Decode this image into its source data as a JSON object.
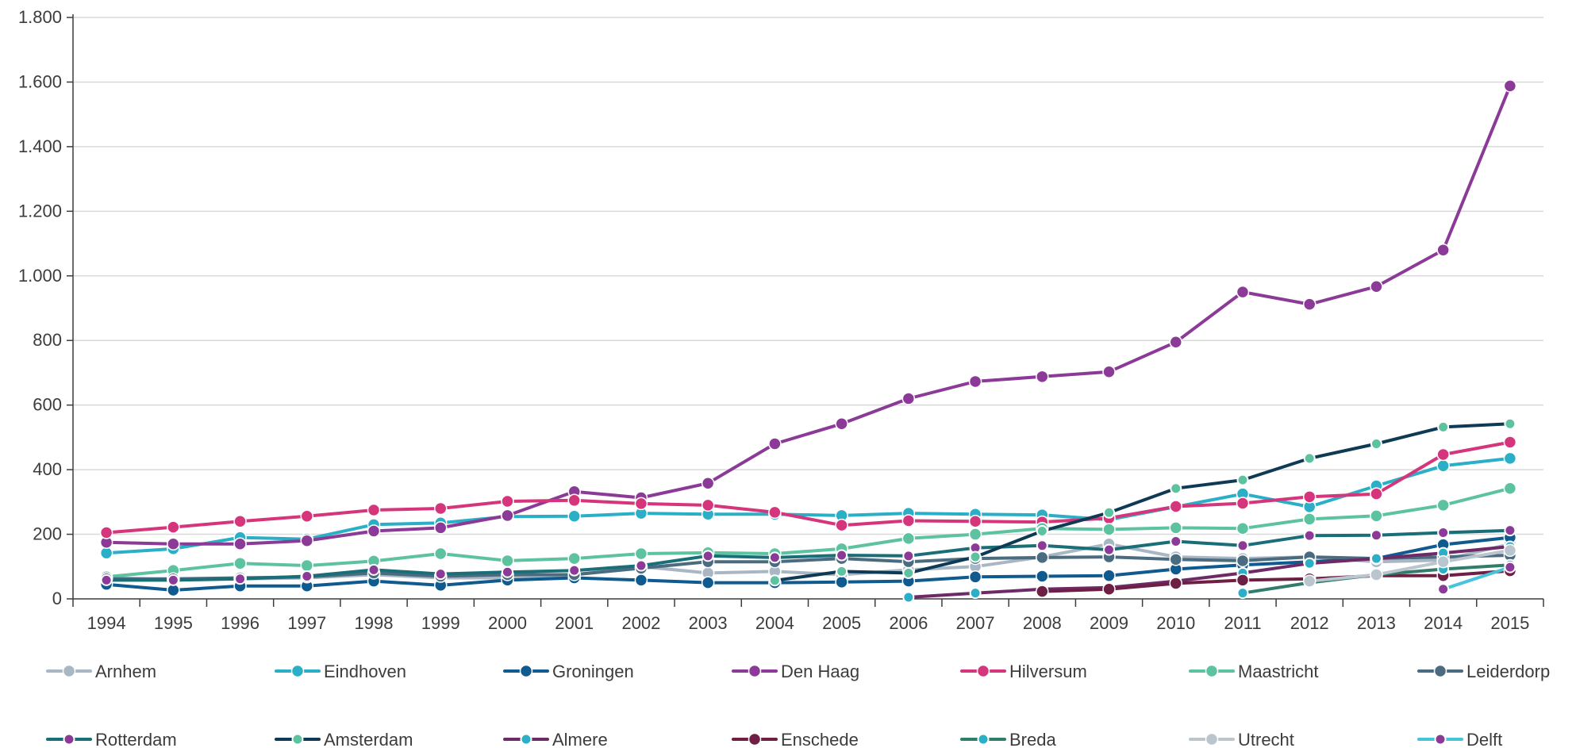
{
  "chart_data": {
    "type": "line",
    "title": "",
    "xlabel": "",
    "ylabel": "",
    "x": [
      "1994",
      "1995",
      "1996",
      "1997",
      "1998",
      "1999",
      "2000",
      "2001",
      "2002",
      "2003",
      "2004",
      "2005",
      "2006",
      "2007",
      "2008",
      "2009",
      "2010",
      "2011",
      "2012",
      "2013",
      "2014",
      "2015"
    ],
    "ylim": [
      0,
      1800
    ],
    "yticks": [
      0,
      200,
      400,
      600,
      800,
      1000,
      1200,
      1400,
      1600,
      1800
    ],
    "ytick_labels": [
      "0",
      "200",
      "400",
      "600",
      "800",
      "1.000",
      "1.200",
      "1.400",
      "1.600",
      "1.800"
    ],
    "grid": "horizontal",
    "legend_position": "bottom",
    "series": [
      {
        "name": "Arnhem",
        "color": "#a9b7c4",
        "marker": "filled",
        "values": [
          65,
          60,
          62,
          65,
          75,
          65,
          65,
          75,
          100,
          80,
          85,
          75,
          90,
          100,
          130,
          170,
          130,
          125,
          130,
          115,
          120,
          170
        ]
      },
      {
        "name": "Eindhoven",
        "color": "#2bafc6",
        "marker": "filled",
        "values": [
          142,
          155,
          190,
          185,
          230,
          235,
          255,
          256,
          265,
          262,
          262,
          258,
          265,
          262,
          260,
          245,
          285,
          325,
          285,
          350,
          412,
          435
        ]
      },
      {
        "name": "Groningen",
        "color": "#0f5a8e",
        "marker": "filled",
        "values": [
          45,
          27,
          40,
          40,
          55,
          42,
          58,
          65,
          58,
          50,
          50,
          52,
          55,
          68,
          70,
          72,
          92,
          105,
          115,
          125,
          168,
          190
        ]
      },
      {
        "name": "Den Haag",
        "color": "#8c3a97",
        "marker": "filled",
        "values": [
          175,
          170,
          170,
          180,
          210,
          220,
          258,
          332,
          313,
          358,
          480,
          542,
          620,
          673,
          688,
          703,
          795,
          950,
          912,
          967,
          1080,
          1588
        ]
      },
      {
        "name": "Hilversum",
        "color": "#d5357a",
        "marker": "filled",
        "values": [
          205,
          222,
          240,
          256,
          275,
          280,
          302,
          305,
          295,
          290,
          268,
          228,
          242,
          240,
          238,
          250,
          286,
          296,
          316,
          325,
          447,
          485
        ]
      },
      {
        "name": "Maastricht",
        "color": "#5cc29f",
        "marker": "filled",
        "values": [
          68,
          88,
          110,
          103,
          117,
          140,
          118,
          125,
          140,
          143,
          140,
          155,
          187,
          200,
          218,
          215,
          220,
          218,
          247,
          257,
          290,
          342
        ]
      },
      {
        "name": "Leiderdorp",
        "color": "#4a6b80",
        "marker": "filled",
        "values": [
          62,
          62,
          65,
          68,
          80,
          70,
          75,
          75,
          95,
          115,
          115,
          125,
          115,
          125,
          128,
          130,
          122,
          118,
          130,
          125,
          130,
          135
        ]
      },
      {
        "name": "Rotterdam",
        "color": "#1a6e77",
        "marker": "dot",
        "markerColor": "#8c3a97",
        "values": [
          58,
          58,
          62,
          70,
          90,
          77,
          83,
          88,
          103,
          133,
          128,
          135,
          133,
          158,
          165,
          152,
          178,
          165,
          196,
          197,
          205,
          212
        ]
      },
      {
        "name": "Amsterdam",
        "color": "#0f3a55",
        "marker": "dot",
        "markerColor": "#5cc29f",
        "values": [
          null,
          null,
          null,
          null,
          null,
          null,
          null,
          null,
          null,
          null,
          57,
          85,
          80,
          130,
          210,
          267,
          342,
          368,
          435,
          480,
          532,
          542
        ]
      },
      {
        "name": "Almere",
        "color": "#6e2a66",
        "marker": "dot",
        "markerColor": "#2bafc6",
        "values": [
          null,
          null,
          null,
          null,
          null,
          null,
          null,
          null,
          null,
          null,
          null,
          null,
          5,
          18,
          30,
          35,
          55,
          80,
          110,
          125,
          142,
          162
        ]
      },
      {
        "name": "Enschede",
        "color": "#6f1e44",
        "marker": "filled",
        "values": [
          null,
          null,
          null,
          null,
          null,
          null,
          null,
          null,
          null,
          null,
          null,
          null,
          null,
          null,
          23,
          30,
          48,
          58,
          62,
          72,
          72,
          87
        ]
      },
      {
        "name": "Breda",
        "color": "#2f7d6a",
        "marker": "dot",
        "markerColor": "#2bafc6",
        "values": [
          null,
          null,
          null,
          null,
          null,
          null,
          null,
          null,
          null,
          null,
          null,
          null,
          null,
          null,
          null,
          null,
          null,
          18,
          50,
          75,
          92,
          105
        ]
      },
      {
        "name": "Utrecht",
        "color": "#bac5ce",
        "marker": "filled",
        "values": [
          null,
          null,
          null,
          null,
          null,
          null,
          null,
          null,
          null,
          null,
          null,
          null,
          null,
          null,
          null,
          null,
          null,
          null,
          55,
          75,
          115,
          150
        ]
      },
      {
        "name": "Delft",
        "color": "#45c4dc",
        "marker": "dot",
        "markerColor": "#8c3a97",
        "values": [
          null,
          null,
          null,
          null,
          null,
          null,
          null,
          null,
          null,
          null,
          null,
          null,
          null,
          null,
          null,
          null,
          null,
          null,
          null,
          null,
          30,
          98
        ]
      }
    ]
  }
}
